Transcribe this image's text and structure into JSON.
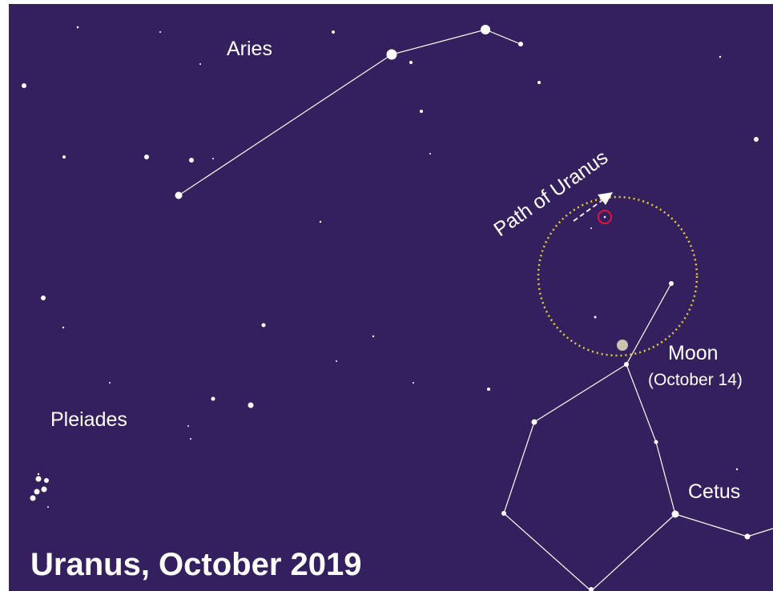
{
  "labels": {
    "aries": "Aries",
    "path": "Path of Uranus",
    "moon": "Moon",
    "moon_date": "(October 14)",
    "pleiades": "Pleiades",
    "cetus": "Cetus"
  },
  "title": "Uranus, October 2019"
}
